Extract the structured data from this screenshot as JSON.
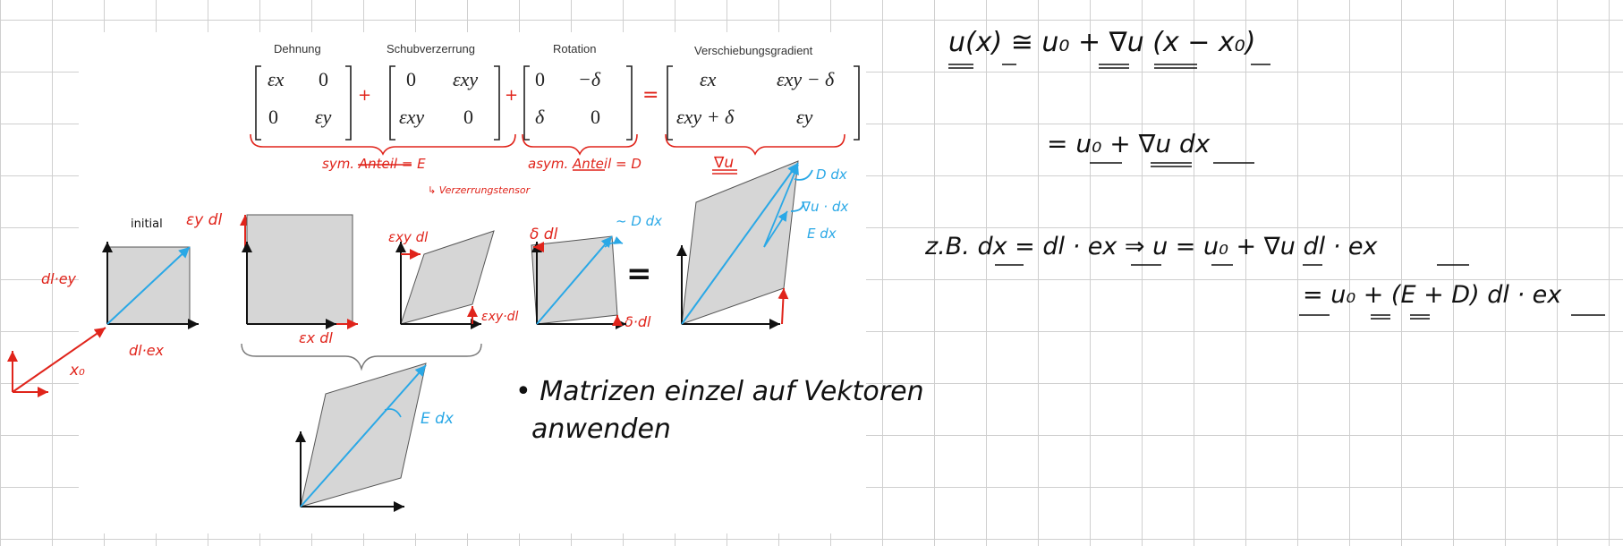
{
  "matrix_headers": {
    "strain": "Dehnung",
    "shear": "Schubverzerrung",
    "rotation": "Rotation",
    "gradient": "Verschiebungsgradient"
  },
  "matrices": {
    "strain": [
      "εx",
      "0",
      "0",
      "εy"
    ],
    "shear": [
      "0",
      "εxy",
      "εxy",
      "0"
    ],
    "rotation": [
      "0",
      "−δ",
      "δ",
      "0"
    ],
    "gradient": [
      "εx",
      "εxy − δ",
      "εxy + δ",
      "εy"
    ]
  },
  "operators": {
    "plus1": "+",
    "plus2": "+",
    "equals": "="
  },
  "notes": {
    "sym_part": "sym. Anteil = E",
    "strain_tensor": "↳ Verzerrungstensor",
    "asym_part": "asym. Anteil = D",
    "grad_u": "∇u"
  },
  "diagram_labels": {
    "initial": "initial",
    "eps_y_dl": "εy dl",
    "dl_ey": "dl·ey",
    "dx1": "dx",
    "dl_ex": "dl·ex",
    "x0": "x₀",
    "eps_x_dl": "εx dl",
    "eps_xy_dl_top": "εxy dl",
    "eps_xy_dl_side": "εxy·dl",
    "delta_dl_top": "δ dl",
    "delta_dl_side": "δ·dl",
    "d_dx_approx": "~ D dx",
    "dx2": "dx",
    "equals_sign": "=",
    "dx3": "dx",
    "D_dx": "D dx",
    "grad_u_dx": "∇u · dx",
    "E_dx_right": "E dx",
    "E_dx_bottom": "E dx",
    "dx4": "dx"
  },
  "handwritten_note": {
    "line1": "• Matrizen einzel auf Vektoren",
    "line2": "anwenden"
  },
  "equations": {
    "eq1": "u(x) ≅ u₀ + ∇u (x − x₀)",
    "eq2": "= u₀ + ∇u dx",
    "eq3": "z.B.  dx = dl · ex  ⇒  u = u₀ + ∇u dl · ex",
    "eq4": "= u₀ + (E + D) dl · ex"
  },
  "colors": {
    "red_ink": "#e0241b",
    "blue_ink": "#2aa8e6",
    "black_ink": "#111111",
    "grid": "#cfcfcf",
    "fill": "#d6d6d6"
  }
}
